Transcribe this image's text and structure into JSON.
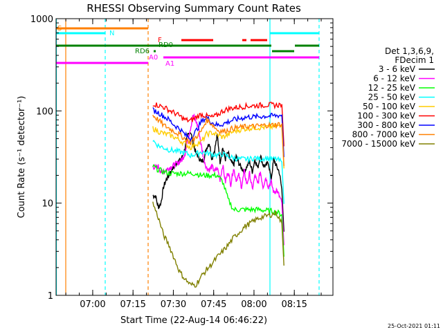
{
  "chart_data": {
    "type": "line",
    "title": "RHESSI Observing Summary Count Rates",
    "xlabel": "Start Time (22-Aug-14 06:46:22)",
    "ylabel": "Count Rate (s⁻¹ detector⁻¹)",
    "yscale": "log",
    "ylim": [
      1,
      1000
    ],
    "xlim_minutes_after_start": [
      0,
      103
    ],
    "x_ticks": [
      "07:00",
      "07:15",
      "07:30",
      "07:45",
      "08:00",
      "08:15"
    ],
    "y_ticks": [
      "1",
      "10",
      "100",
      "1000"
    ],
    "legend_header": [
      "Det 1,3,6,9,",
      "FDecim 1"
    ],
    "legend_placement": "right",
    "series": [
      {
        "name": "3 - 6 keV",
        "color": "#000000",
        "t": [
          36,
          37,
          38,
          39,
          40,
          41,
          42,
          43,
          44,
          45,
          46,
          47,
          48,
          49,
          50,
          51,
          52,
          53,
          54,
          55,
          56,
          57,
          58,
          59,
          60,
          61,
          62,
          63,
          64,
          65,
          66,
          67,
          68,
          69,
          70,
          71,
          72,
          73,
          74,
          75,
          76,
          77,
          78,
          79,
          80,
          81,
          82,
          83,
          84
        ],
        "values": [
          12,
          12,
          9,
          10,
          15,
          18,
          20,
          23,
          25,
          28,
          29,
          32,
          40,
          55,
          60,
          45,
          35,
          32,
          28,
          30,
          40,
          45,
          30,
          38,
          55,
          28,
          40,
          30,
          35,
          28,
          26,
          32,
          27,
          24,
          22,
          25,
          28,
          22,
          30,
          24,
          33,
          26,
          25,
          28,
          18,
          30,
          25,
          22,
          14
        ]
      },
      {
        "name": "6 - 12 keV",
        "color": "#ff00ff",
        "t": [
          36,
          37,
          38,
          39,
          40,
          41,
          42,
          43,
          44,
          45,
          46,
          47,
          48,
          49,
          50,
          51,
          52,
          53,
          54,
          55,
          56,
          57,
          58,
          59,
          60,
          61,
          62,
          63,
          64,
          65,
          66,
          67,
          68,
          69,
          70,
          71,
          72,
          73,
          74,
          75,
          76,
          77,
          78,
          79,
          80,
          81,
          82,
          83,
          84
        ],
        "values": [
          25,
          24,
          25,
          22,
          22,
          23,
          24,
          25,
          26,
          27,
          28,
          30,
          35,
          50,
          65,
          90,
          78,
          65,
          42,
          30,
          24,
          23,
          25,
          22,
          24,
          18,
          26,
          17,
          22,
          16,
          24,
          18,
          20,
          15,
          22,
          16,
          21,
          14,
          20,
          16,
          22,
          15,
          19,
          15,
          17,
          13,
          14,
          12,
          10
        ]
      },
      {
        "name": "12 - 25 keV",
        "color": "#00ff00",
        "t": [
          36,
          38,
          40,
          42,
          44,
          46,
          48,
          50,
          52,
          54,
          56,
          58,
          60,
          62,
          64,
          66,
          68,
          70,
          72,
          74,
          76,
          78,
          80,
          82,
          84
        ],
        "values": [
          25,
          23,
          22,
          21,
          21,
          21,
          21,
          21,
          21,
          20,
          20,
          20,
          20,
          17,
          11,
          8.5,
          8.5,
          8.5,
          8.5,
          8.5,
          8.5,
          8.3,
          8.2,
          8.0,
          7.5
        ]
      },
      {
        "name": "25 - 50 keV",
        "color": "#00ffff",
        "t": [
          36,
          38,
          40,
          42,
          44,
          46,
          48,
          50,
          52,
          54,
          56,
          58,
          60,
          62,
          64,
          66,
          68,
          70,
          72,
          74,
          76,
          78,
          80,
          82,
          84
        ],
        "values": [
          48,
          42,
          40,
          38,
          37,
          36,
          35,
          33,
          34,
          36,
          35,
          34,
          33,
          34,
          32,
          31,
          30,
          30,
          30,
          31,
          30,
          31,
          30,
          30,
          28
        ]
      },
      {
        "name": "50 - 100 keV",
        "color": "#ffcc00",
        "t": [
          36,
          38,
          40,
          42,
          44,
          46,
          48,
          50,
          52,
          54,
          56,
          58,
          60,
          62,
          64,
          66,
          68,
          70,
          72,
          74,
          76,
          78,
          80,
          82,
          84
        ],
        "values": [
          65,
          60,
          57,
          55,
          52,
          48,
          44,
          40,
          44,
          46,
          56,
          58,
          55,
          52,
          55,
          60,
          62,
          64,
          65,
          66,
          66,
          67,
          67,
          68,
          68
        ]
      },
      {
        "name": "100 - 300 keV",
        "color": "#ff0000",
        "t": [
          36,
          38,
          40,
          42,
          44,
          46,
          48,
          50,
          52,
          54,
          56,
          58,
          60,
          62,
          64,
          66,
          68,
          70,
          72,
          74,
          76,
          78,
          80,
          82,
          84
        ],
        "values": [
          120,
          115,
          110,
          102,
          95,
          88,
          80,
          78,
          85,
          92,
          88,
          85,
          90,
          100,
          105,
          108,
          110,
          112,
          113,
          114,
          115,
          116,
          116,
          115,
          118
        ]
      },
      {
        "name": "300 - 800 keV",
        "color": "#0000ff",
        "t": [
          36,
          38,
          40,
          42,
          44,
          46,
          48,
          50,
          52,
          54,
          56,
          58,
          60,
          62,
          64,
          66,
          68,
          70,
          72,
          74,
          76,
          78,
          80,
          82,
          84
        ],
        "values": [
          102,
          96,
          88,
          80,
          70,
          64,
          55,
          50,
          60,
          76,
          85,
          75,
          70,
          72,
          76,
          80,
          82,
          85,
          86,
          86,
          87,
          88,
          88,
          89,
          90
        ]
      },
      {
        "name": "800 - 7000 keV",
        "color": "#ff8000",
        "t": [
          36,
          38,
          40,
          42,
          44,
          46,
          48,
          50,
          52,
          54,
          56,
          58,
          60,
          62,
          64,
          66,
          68,
          70,
          72,
          74,
          76,
          78,
          80,
          82,
          84
        ],
        "values": [
          90,
          80,
          70,
          65,
          60,
          55,
          50,
          45,
          52,
          60,
          80,
          72,
          62,
          60,
          62,
          65,
          66,
          67,
          68,
          68,
          69,
          70,
          70,
          71,
          72
        ]
      },
      {
        "name": "7000 - 15000 keV",
        "color": "#808000",
        "t": [
          36,
          38,
          40,
          42,
          44,
          46,
          48,
          50,
          52,
          54,
          56,
          58,
          60,
          62,
          64,
          66,
          68,
          70,
          72,
          74,
          76,
          78,
          80,
          82,
          84
        ],
        "values": [
          10,
          7,
          4.5,
          3.5,
          2.5,
          1.8,
          1.5,
          1.3,
          1.3,
          1.6,
          1.9,
          2.2,
          2.6,
          3.0,
          3.5,
          4.2,
          4.8,
          5.5,
          6.0,
          6.5,
          7.0,
          7.2,
          7.5,
          7.8,
          6.0
        ]
      }
    ],
    "state_bars": [
      {
        "label": "S",
        "color": "#ff8000"
      },
      {
        "label": "N",
        "color": "#00ffff"
      },
      {
        "label": "F",
        "color": "#ff0000"
      },
      {
        "label": "RD0",
        "color": "#008000"
      },
      {
        "label": "RD6",
        "color": "#008000"
      },
      {
        "label": "A0",
        "color": "#ff00ff"
      },
      {
        "label": "A1",
        "color": "#ff00ff"
      }
    ],
    "stamp": "25-Oct-2021 01:11"
  }
}
